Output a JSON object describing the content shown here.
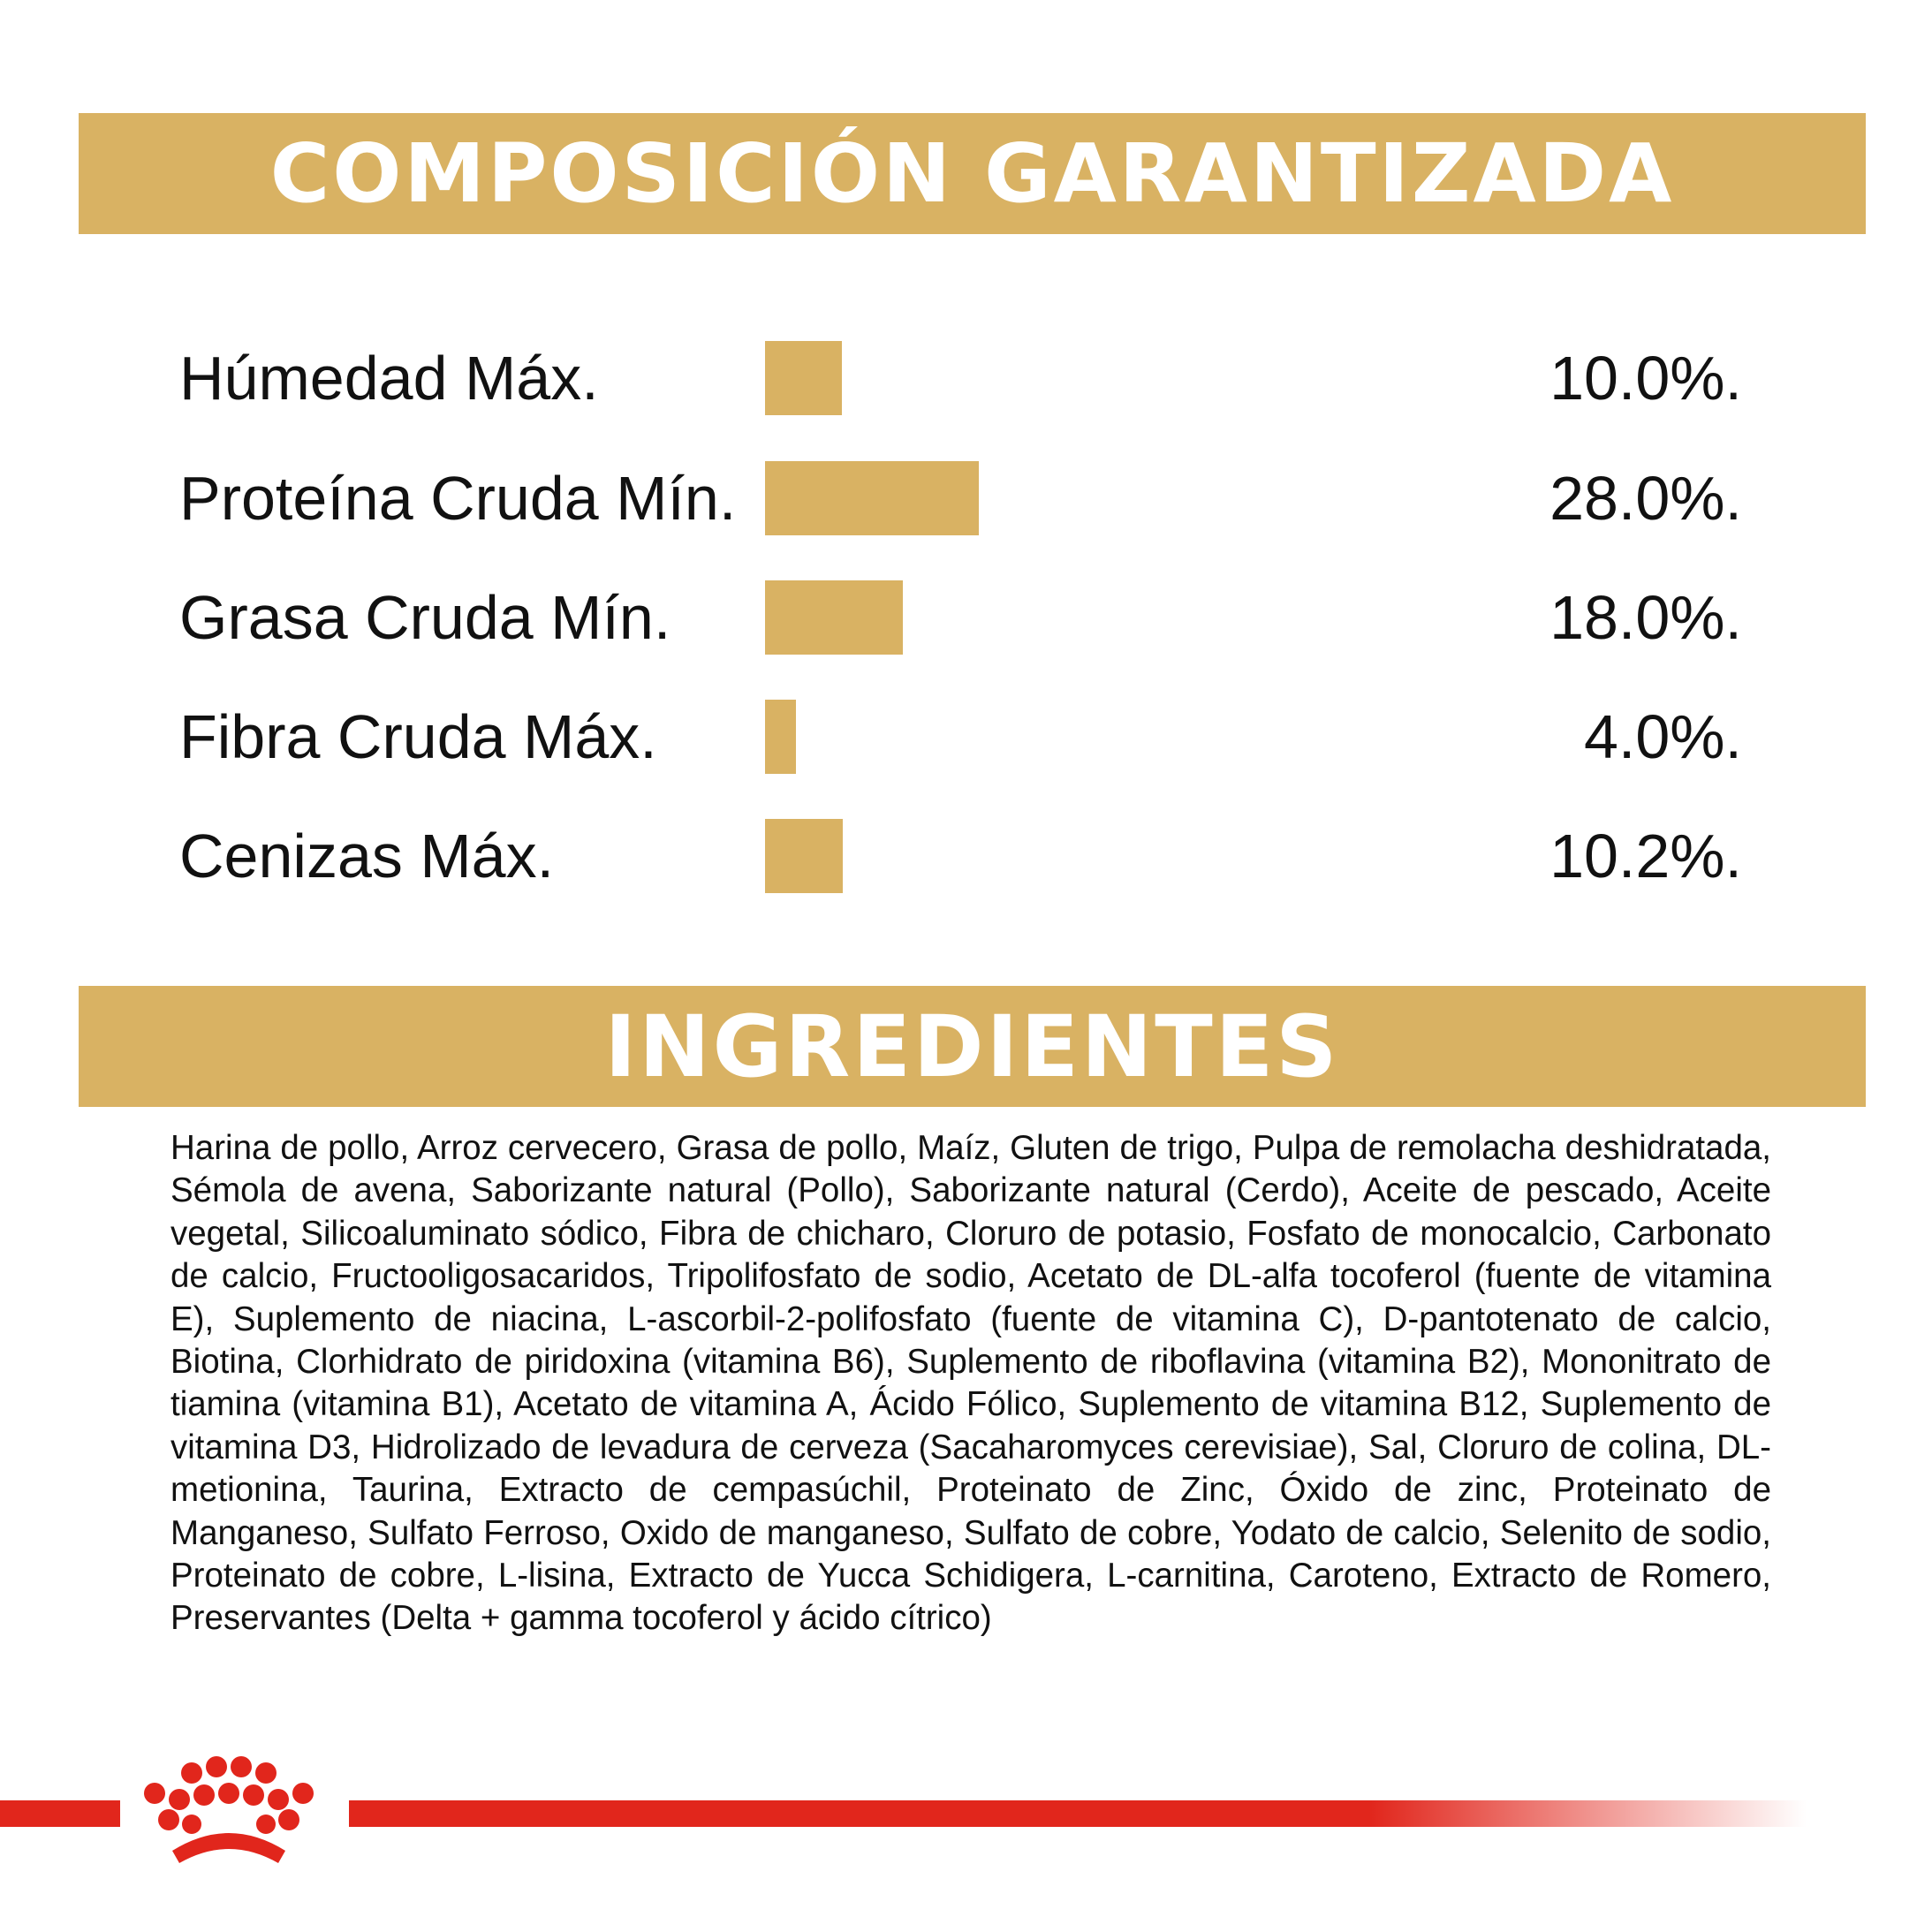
{
  "composicion": {
    "title": "COMPOSICIÓN GARANTIZADA",
    "bar_color": "#d9b263",
    "rows": [
      {
        "label": "Húmedad Máx.",
        "value": "10.0%.",
        "percent": 10.0
      },
      {
        "label": "Proteína Cruda Mín.",
        "value": "28.0%.",
        "percent": 28.0
      },
      {
        "label": "Grasa Cruda Mín.",
        "value": "18.0%.",
        "percent": 18.0
      },
      {
        "label": "Fibra Cruda Máx.",
        "value": "4.0%.",
        "percent": 4.0
      },
      {
        "label": "Cenizas Máx.",
        "value": "10.2%.",
        "percent": 10.2
      }
    ]
  },
  "ingredientes": {
    "title": "INGREDIENTES",
    "text": "Harina de pollo, Arroz cervecero, Grasa de pollo, Maíz, Gluten de trigo, Pulpa de remolacha deshidratada, Sémola de avena, Saborizante natural (Pollo), Saborizante natural (Cerdo), Aceite de pescado, Aceite vegetal, Silicoaluminato sódico, Fibra de chicharo, Cloruro de potasio, Fosfato de monocalcio, Carbonato de calcio, Fructooligosacaridos, Tripolifosfato de sodio, Acetato de DL-alfa tocoferol (fuente de vitamina E), Suplemento de niacina, L-ascorbil-2-polifosfato (fuente de vitamina C), D-pantotenato de calcio, Biotina, Clorhidrato de piridoxina (vitamina B6), Suplemento de riboflavina (vitamina B2), Mononitrato de tiamina (vitamina B1), Acetato de vitamina A, Ácido Fólico, Suplemento de vitamina B12, Suplemento de vitamina D3, Hidrolizado de levadura de cerveza (Sacaharomyces cerevisiae), Sal, Cloruro de colina, DL-metionina, Taurina, Extracto de cempasúchil, Proteinato de Zinc, Óxido de zinc, Proteinato de Manganeso, Sulfato Ferroso, Oxido de manganeso, Sulfato de cobre, Yodato de calcio, Selenito de sodio, Proteinato de cobre, L-lisina, Extracto de Yucca Schidigera, L-carnitina, Caroteno, Extracto de Romero, Preservantes (Delta + gamma tocoferol y ácido cítrico)"
  },
  "footer": {
    "logo_icon": "crown-logo-icon",
    "brand_color": "#e1261c"
  }
}
